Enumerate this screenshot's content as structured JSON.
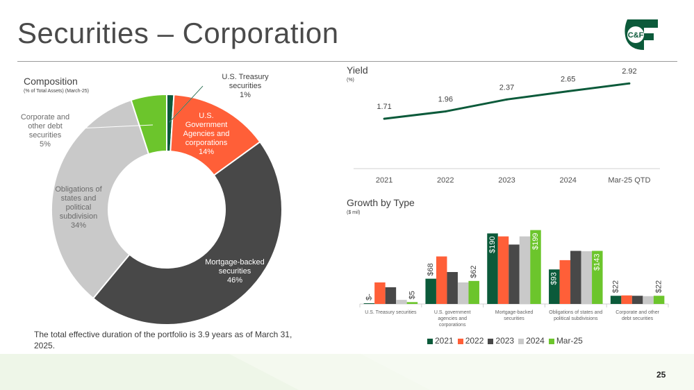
{
  "page": {
    "title": "Securities – Corporation",
    "page_number": "25"
  },
  "logo": {
    "name": "C&F logo",
    "text": "C&F",
    "color": "#0b5a3a"
  },
  "composition": {
    "title": "Composition",
    "subtitle": "(% of Total Assets) (March-25)"
  },
  "yield_section": {
    "title": "Yield",
    "subtitle": "(%)"
  },
  "growth_section": {
    "title": "Growth by Type",
    "subtitle": "($ mil)"
  },
  "note": "The total effective duration of the portfolio is 3.9 years as of March 31, 2025.",
  "chart_data": [
    {
      "type": "pie",
      "variant": "donut",
      "title": "Composition",
      "subtitle": "(% of Total Assets) (March-25)",
      "slices": [
        {
          "label": [
            "U.S. Treasury",
            "securities"
          ],
          "pct_label": "1%",
          "value": 1,
          "color": "#0b5a3a"
        },
        {
          "label": [
            "U.S.",
            "Government",
            "Agencies and",
            "corporations"
          ],
          "pct_label": "14%",
          "value": 14,
          "color": "#ff5f38"
        },
        {
          "label": [
            "Mortgage-backed",
            "securities"
          ],
          "pct_label": "46%",
          "value": 46,
          "color": "#484848"
        },
        {
          "label": [
            "Obligations of",
            "states and",
            "political",
            "subdivision"
          ],
          "pct_label": "34%",
          "value": 34,
          "color": "#c9c9c9"
        },
        {
          "label": [
            "Corporate and",
            "other debt",
            "securities"
          ],
          "pct_label": "5%",
          "value": 5,
          "color": "#6cc52c"
        }
      ]
    },
    {
      "type": "line",
      "title": "Yield",
      "subtitle": "(%)",
      "categories": [
        "2021",
        "2022",
        "2023",
        "2024",
        "Mar-25 QTD"
      ],
      "values": [
        1.71,
        1.96,
        2.37,
        2.65,
        2.92
      ],
      "labels": [
        "1.71",
        "1.96",
        "2.37",
        "2.65",
        "2.92"
      ],
      "color": "#0b5a3a",
      "ylim": [
        0,
        3.4
      ]
    },
    {
      "type": "bar",
      "title": "Growth by Type",
      "subtitle": "($ mil)",
      "categories": [
        [
          "U.S. Treasury securities"
        ],
        [
          "U.S. government",
          "agencies and",
          "corporations"
        ],
        [
          "Mortgage-backed",
          "securities"
        ],
        [
          "Obligations of states and",
          "political subdivisions"
        ],
        [
          "Corporate and other",
          "debt securities"
        ]
      ],
      "series": [
        {
          "name": "2021",
          "color": "#0b5a3a",
          "values": [
            1,
            68,
            190,
            93,
            22
          ],
          "labels": [
            "$-",
            "$68",
            "$190",
            "$93",
            "$22"
          ]
        },
        {
          "name": "2022",
          "color": "#ff5f38",
          "values": [
            58,
            128,
            182,
            118,
            23
          ],
          "labels": [
            "",
            "",
            "",
            "",
            ""
          ]
        },
        {
          "name": "2023",
          "color": "#484848",
          "values": [
            45,
            86,
            160,
            143,
            22
          ],
          "labels": [
            "",
            "",
            "",
            "",
            ""
          ]
        },
        {
          "name": "2024",
          "color": "#c9c9c9",
          "values": [
            11,
            58,
            182,
            142,
            21
          ],
          "labels": [
            "",
            "",
            "",
            "",
            ""
          ]
        },
        {
          "name": "Mar-25",
          "color": "#6cc52c",
          "values": [
            5,
            62,
            199,
            143,
            22
          ],
          "labels": [
            "$5",
            "$62",
            "$199",
            "$143",
            "$22"
          ]
        }
      ],
      "ylim": [
        0,
        215
      ]
    }
  ]
}
